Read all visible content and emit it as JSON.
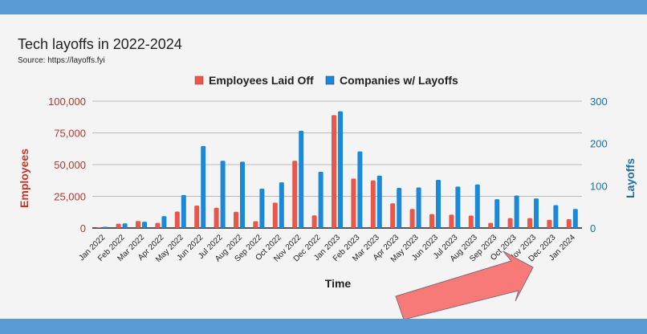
{
  "chart_data": {
    "type": "bar",
    "title": "Tech layoffs in 2022-2024",
    "subtitle": "Source: https://layoffs.fyi",
    "xlabel": "Time",
    "ylabel_left": "Employees",
    "ylabel_right": "Layoffs",
    "ylim_left": [
      0,
      100000
    ],
    "ylim_right": [
      0,
      300
    ],
    "yticks_left": [
      "0",
      "25,000",
      "50,000",
      "75,000",
      "100,000"
    ],
    "yticks_right": [
      "0",
      "100",
      "200",
      "300"
    ],
    "legend_position": "top",
    "grid": true,
    "categories": [
      "Jan 2022",
      "Feb 2022",
      "Mar 2022",
      "Apr 2022",
      "May 2022",
      "Jun 2022",
      "Jul 2022",
      "Aug 2022",
      "Sep 2022",
      "Oct 2022",
      "Nov 2022",
      "Dec 2022",
      "Jan 2023",
      "Feb 2023",
      "Mar 2023",
      "Apr 2023",
      "May 2023",
      "Jun 2023",
      "Jul 2023",
      "Aug 2023",
      "Sep 2023",
      "Oct 2023",
      "Nov 2023",
      "Dec 2023",
      "Jan 2024"
    ],
    "series": [
      {
        "name": "Employees Laid Off",
        "axis": "left",
        "color": "#e8584a",
        "values": [
          500,
          3400,
          5500,
          4000,
          13000,
          17700,
          16000,
          12800,
          5400,
          20000,
          53000,
          10000,
          89000,
          39000,
          37500,
          19500,
          15000,
          11000,
          10500,
          9800,
          4000,
          7800,
          7800,
          6500,
          7000
        ]
      },
      {
        "name": "Companies w/ Layoffs",
        "axis": "right",
        "color": "#1a8ad8",
        "values": [
          3,
          11,
          15,
          28,
          78,
          194,
          159,
          157,
          93,
          108,
          230,
          133,
          276,
          181,
          124,
          95,
          96,
          114,
          98,
          103,
          68,
          77,
          70,
          54,
          45
        ]
      }
    ]
  }
}
